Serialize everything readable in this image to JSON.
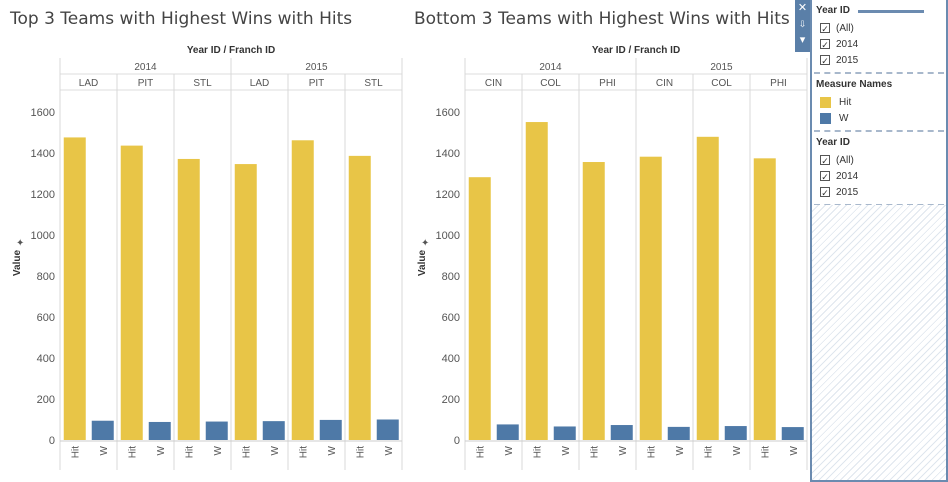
{
  "colors": {
    "hit": "#e8c547",
    "w": "#4e79a7",
    "accent": "#5a7fa8"
  },
  "charts": {
    "left": {
      "title": "Top 3 Teams with Highest Wins with Hits",
      "header_title": "Year ID / Franch ID",
      "years": [
        "2014",
        "2015"
      ],
      "teams": [
        "LAD",
        "PIT",
        "STL",
        "LAD",
        "PIT",
        "STL"
      ],
      "y_label": "Value",
      "y_ticks": [
        "0",
        "200",
        "400",
        "600",
        "800",
        "1000",
        "1200",
        "1400",
        "1600"
      ],
      "measure_labels": [
        "Hit",
        "W"
      ]
    },
    "right": {
      "title": "Bottom 3 Teams with Highest Wins with Hits",
      "header_title": "Year ID / Franch ID",
      "years": [
        "2014",
        "2015"
      ],
      "teams": [
        "CIN",
        "COL",
        "PHI",
        "CIN",
        "COL",
        "PHI"
      ],
      "y_label": "Value",
      "y_ticks": [
        "0",
        "200",
        "400",
        "600",
        "800",
        "1000",
        "1200",
        "1400",
        "1600"
      ],
      "measure_labels": [
        "Hit",
        "W"
      ]
    }
  },
  "chart_data": [
    {
      "type": "bar",
      "title": "Top 3 Teams with Highest Wins with Hits",
      "ylabel": "Value",
      "ylim": [
        0,
        1700
      ],
      "categories": [
        "2014 LAD",
        "2014 PIT",
        "2014 STL",
        "2015 LAD",
        "2015 PIT",
        "2015 STL"
      ],
      "series": [
        {
          "name": "Hit",
          "values": [
            1476,
            1436,
            1371,
            1346,
            1462,
            1386
          ]
        },
        {
          "name": "W",
          "values": [
            94,
            88,
            90,
            92,
            98,
            100
          ]
        }
      ]
    },
    {
      "type": "bar",
      "title": "Bottom 3 Teams with Highest Wins with Hits",
      "ylabel": "Value",
      "ylim": [
        0,
        1700
      ],
      "categories": [
        "2014 CIN",
        "2014 COL",
        "2014 PHI",
        "2015 CIN",
        "2015 COL",
        "2015 PHI"
      ],
      "series": [
        {
          "name": "Hit",
          "values": [
            1282,
            1551,
            1356,
            1382,
            1479,
            1374
          ]
        },
        {
          "name": "W",
          "values": [
            76,
            66,
            73,
            64,
            68,
            63
          ]
        }
      ]
    }
  ],
  "legend": {
    "year_filter_1": {
      "title": "Year ID",
      "options": [
        "(All)",
        "2014",
        "2015"
      ]
    },
    "measure_names": {
      "title": "Measure Names",
      "items": [
        "Hit",
        "W"
      ]
    },
    "year_filter_2": {
      "title": "Year ID",
      "options": [
        "(All)",
        "2014",
        "2015"
      ]
    }
  },
  "side_strip": {
    "close": "✕",
    "pin": "📌",
    "menu": "▾"
  }
}
